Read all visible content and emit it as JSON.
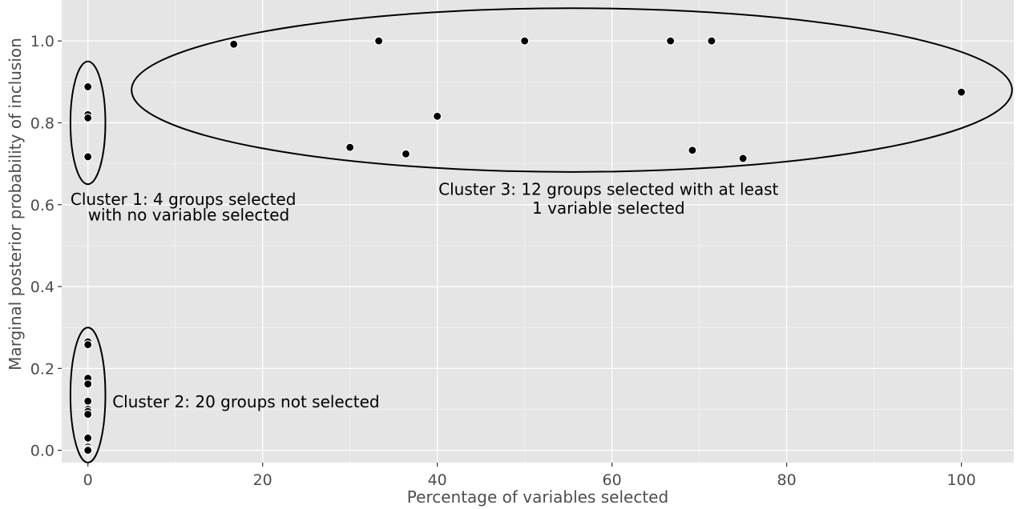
{
  "chart_data": {
    "type": "scatter",
    "xlabel": "Percentage of variables selected",
    "ylabel": "Marginal posterior probability of inclusion",
    "xlim": [
      -3,
      106
    ],
    "ylim": [
      -0.03,
      1.1
    ],
    "x_ticks": [
      0,
      20,
      40,
      60,
      80,
      100
    ],
    "x_tick_labels": [
      "0",
      "20",
      "40",
      "60",
      "80",
      "100"
    ],
    "y_ticks": [
      0.0,
      0.2,
      0.4,
      0.6,
      0.8,
      1.0
    ],
    "y_tick_labels": [
      "0.0",
      "0.2",
      "0.4",
      "0.6",
      "0.8",
      "1.0"
    ],
    "grid": true,
    "background": "#e5e5e5",
    "point_color": "#000000",
    "points": [
      {
        "x": 0,
        "y": 0.888
      },
      {
        "x": 0,
        "y": 0.82
      },
      {
        "x": 0,
        "y": 0.812
      },
      {
        "x": 0,
        "y": 0.717
      },
      {
        "x": 0,
        "y": 0.265
      },
      {
        "x": 0,
        "y": 0.258
      },
      {
        "x": 0,
        "y": 0.176
      },
      {
        "x": 0,
        "y": 0.162
      },
      {
        "x": 0,
        "y": 0.12
      },
      {
        "x": 0,
        "y": 0.1
      },
      {
        "x": 0,
        "y": 0.095
      },
      {
        "x": 0,
        "y": 0.088
      },
      {
        "x": 0,
        "y": 0.03
      },
      {
        "x": 0,
        "y": 0.008
      },
      {
        "x": 0,
        "y": 0.003
      },
      {
        "x": 0,
        "y": 0.0
      },
      {
        "x": 16.7,
        "y": 0.992
      },
      {
        "x": 30,
        "y": 0.74
      },
      {
        "x": 33.3,
        "y": 1.0
      },
      {
        "x": 36.4,
        "y": 0.724
      },
      {
        "x": 40,
        "y": 0.816
      },
      {
        "x": 50,
        "y": 1.0
      },
      {
        "x": 66.7,
        "y": 1.0
      },
      {
        "x": 69.2,
        "y": 0.733
      },
      {
        "x": 71.4,
        "y": 1.0
      },
      {
        "x": 75,
        "y": 0.713
      },
      {
        "x": 100,
        "y": 0.875
      }
    ],
    "clusters": [
      {
        "cx": 0,
        "cy": 0.8,
        "rx": 2.0,
        "ry": 0.15,
        "label_lines": [
          "Cluster 1: 4 groups selected",
          "with no variable selected"
        ],
        "label_x": [
          -2.0,
          0.0
        ],
        "label_y": [
          0.6,
          0.561
        ],
        "anchor": "start"
      },
      {
        "cx": 0,
        "cy": 0.135,
        "rx": 2.0,
        "ry": 0.165,
        "label_lines": [
          "Cluster 2: 20 groups not selected"
        ],
        "label_x": [
          2.8
        ],
        "label_y": [
          0.105
        ],
        "anchor": "start"
      },
      {
        "cx": 55.4,
        "cy": 0.88,
        "rx": 50.4,
        "ry": 0.2,
        "label_lines": [
          "Cluster 3: 12 groups selected with at least",
          "1 variable selected"
        ],
        "label_x": [
          59.6,
          59.6
        ],
        "label_y": [
          0.624,
          0.578
        ],
        "anchor": "middle"
      }
    ]
  }
}
